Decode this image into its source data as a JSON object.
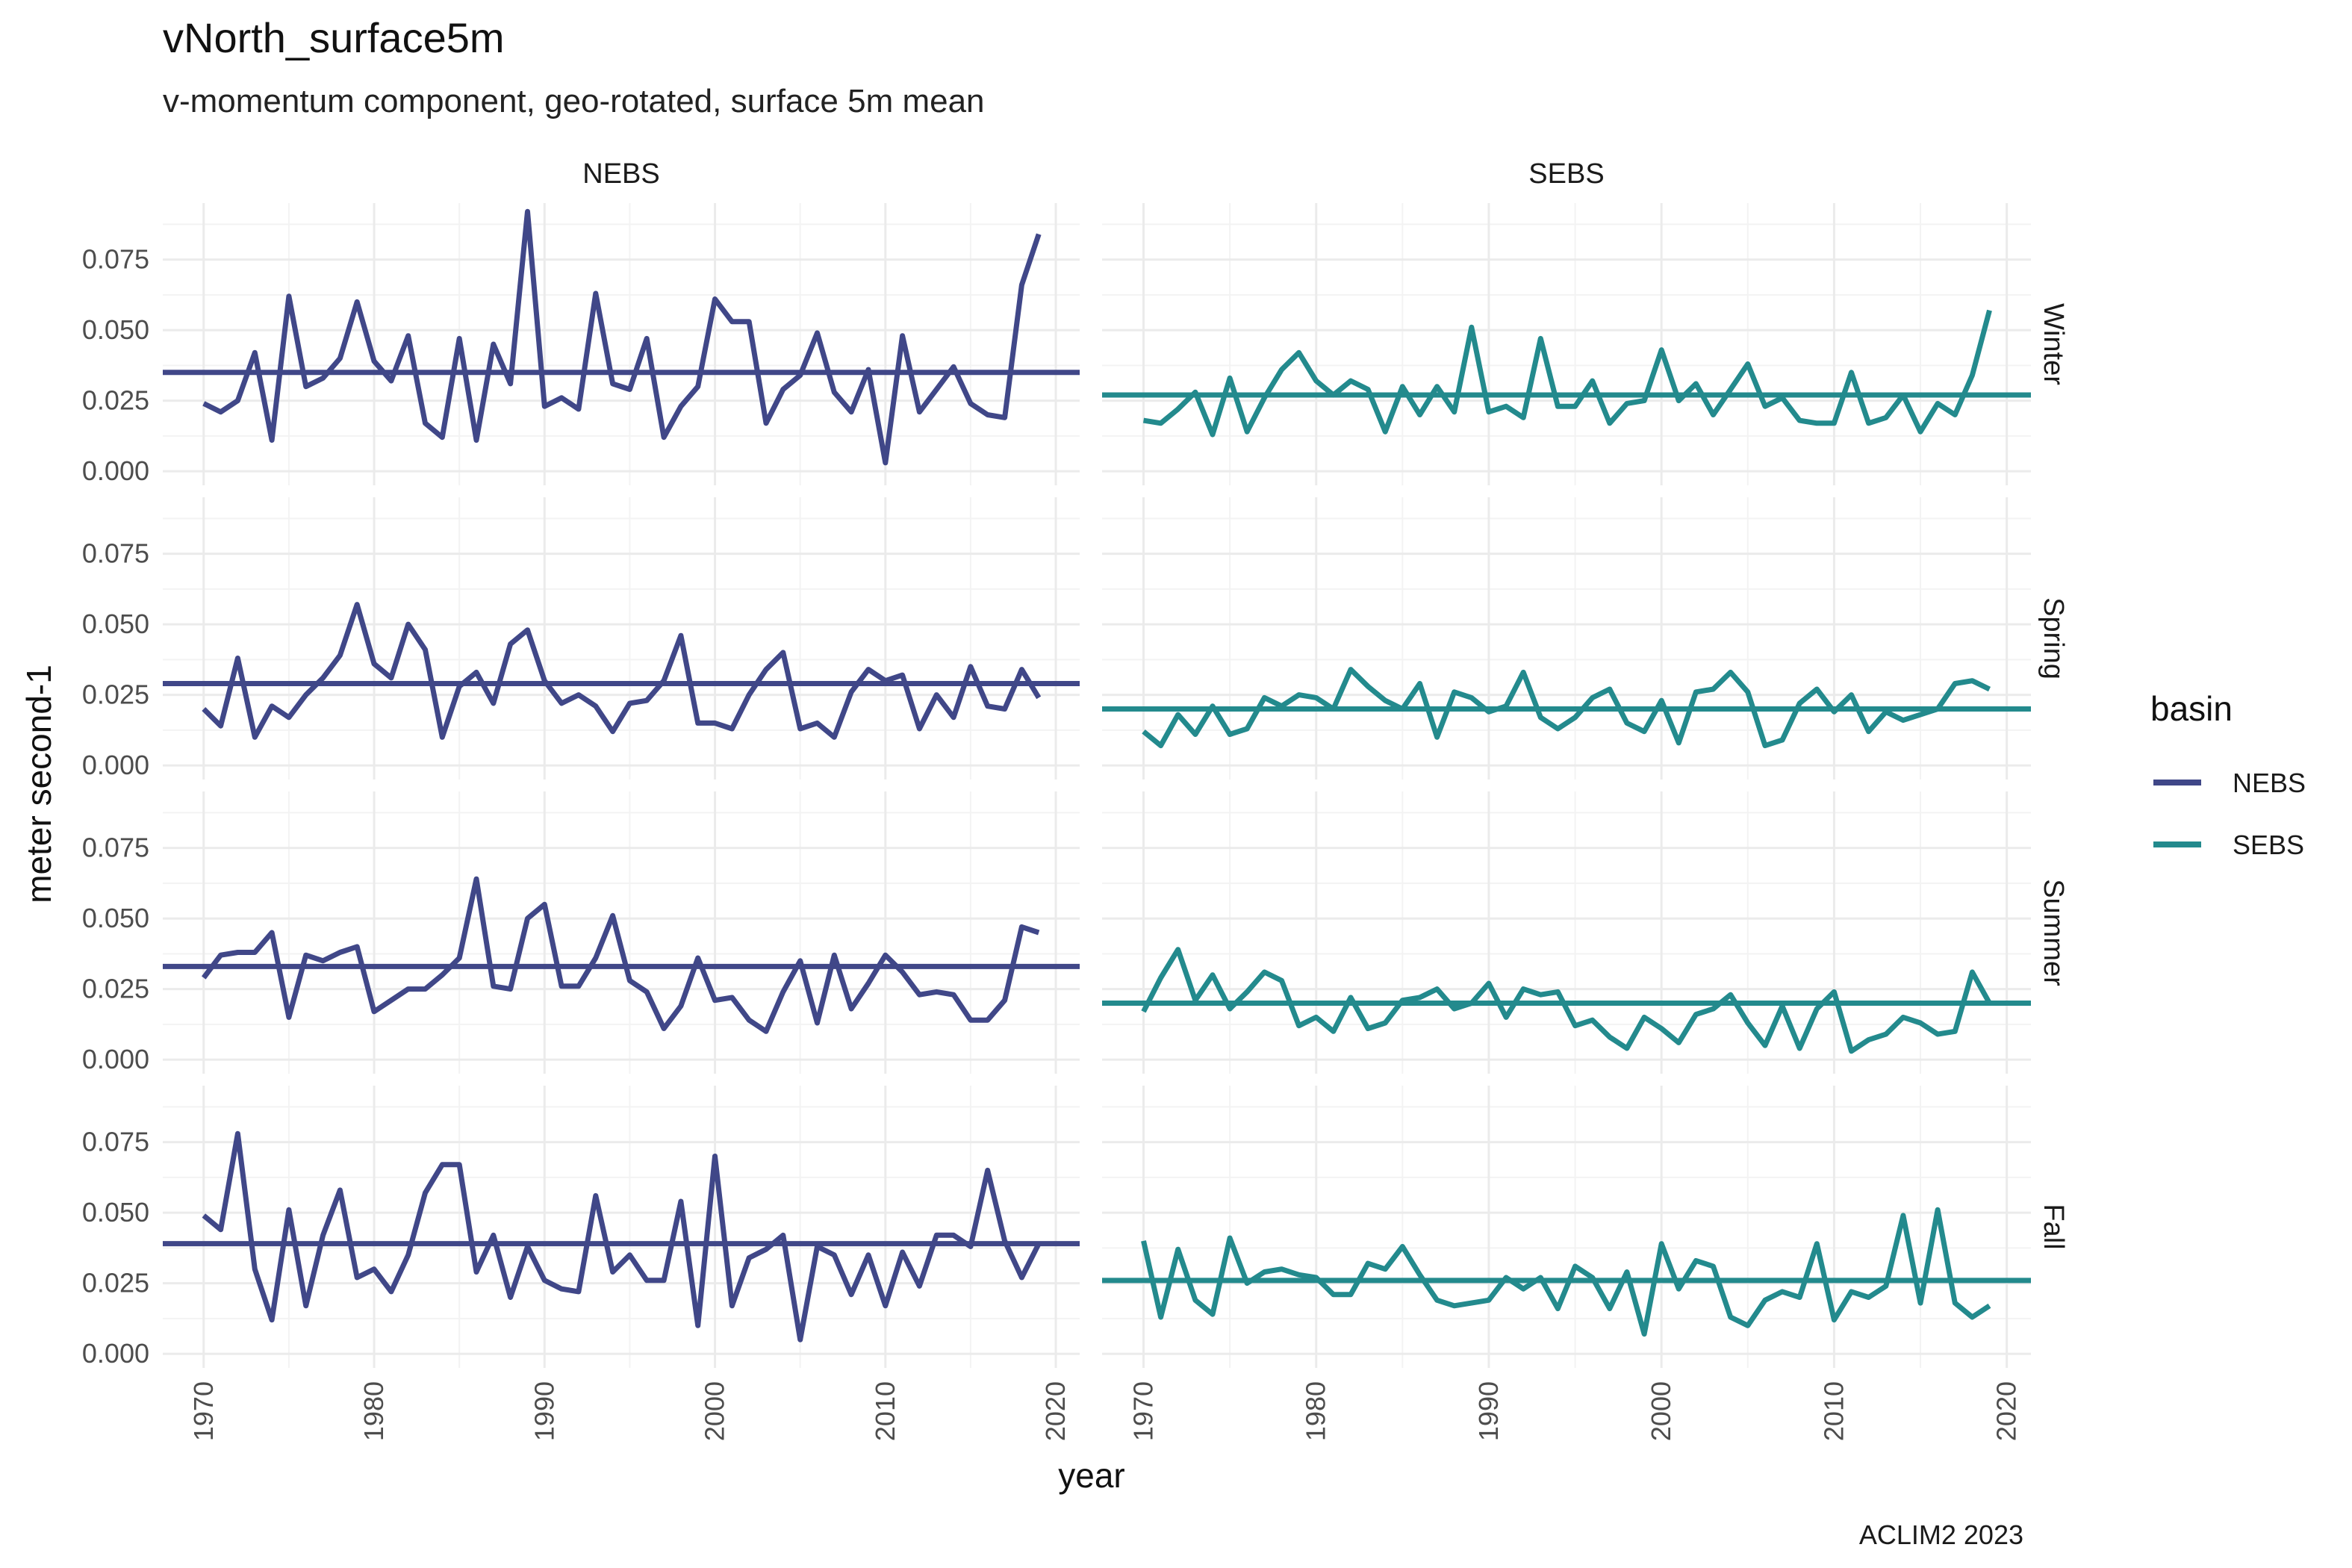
{
  "chart_data": {
    "type": "line",
    "title": "vNorth_surface5m",
    "subtitle": "v-momentum component, geo-rotated, surface 5m mean",
    "xlabel": "year",
    "ylabel": "meter second-1",
    "caption": "ACLIM2 2023",
    "xlim": [
      1967.6,
      2021.4
    ],
    "x_ticks": [
      1970,
      1980,
      1990,
      2000,
      2010,
      2020
    ],
    "y_ticks": [
      0.0,
      0.025,
      0.05,
      0.075
    ],
    "y_tick_labels": [
      "0.000",
      "0.025",
      "0.050",
      "0.075"
    ],
    "ylim": [
      -0.005,
      0.095
    ],
    "grid": true,
    "legend": {
      "title": "basin",
      "position": "right",
      "entries": [
        {
          "name": "NEBS",
          "color": "#404788"
        },
        {
          "name": "SEBS",
          "color": "#238A8D"
        }
      ]
    },
    "columns": [
      "NEBS",
      "SEBS"
    ],
    "rows": [
      "Winter",
      "Spring",
      "Summer",
      "Fall"
    ],
    "colors": {
      "NEBS": "#404788",
      "SEBS": "#238A8D"
    },
    "x": [
      1970,
      1971,
      1972,
      1973,
      1974,
      1975,
      1976,
      1977,
      1978,
      1979,
      1980,
      1981,
      1982,
      1983,
      1984,
      1985,
      1986,
      1987,
      1988,
      1989,
      1990,
      1991,
      1992,
      1993,
      1994,
      1995,
      1996,
      1997,
      1998,
      1999,
      2000,
      2001,
      2002,
      2003,
      2004,
      2005,
      2006,
      2007,
      2008,
      2009,
      2010,
      2011,
      2012,
      2013,
      2014,
      2015,
      2016,
      2017,
      2018,
      2019
    ],
    "panels": [
      {
        "row": "Winter",
        "basin": "NEBS",
        "mean": 0.035,
        "values": [
          0.024,
          0.021,
          0.025,
          0.042,
          0.011,
          0.062,
          0.03,
          0.033,
          0.04,
          0.06,
          0.039,
          0.032,
          0.048,
          0.017,
          0.012,
          0.047,
          0.011,
          0.045,
          0.031,
          0.092,
          0.023,
          0.026,
          0.022,
          0.063,
          0.031,
          0.029,
          0.047,
          0.012,
          0.023,
          0.03,
          0.061,
          0.053,
          0.053,
          0.017,
          0.029,
          0.034,
          0.049,
          0.028,
          0.021,
          0.036,
          0.003,
          0.048,
          0.021,
          0.029,
          0.037,
          0.024,
          0.02,
          0.019,
          0.066,
          0.084
        ]
      },
      {
        "row": "Winter",
        "basin": "SEBS",
        "mean": 0.027,
        "values": [
          0.018,
          0.017,
          0.022,
          0.028,
          0.013,
          0.033,
          0.014,
          0.026,
          0.036,
          0.042,
          0.032,
          0.027,
          0.032,
          0.029,
          0.014,
          0.03,
          0.02,
          0.03,
          0.021,
          0.051,
          0.021,
          0.023,
          0.019,
          0.047,
          0.023,
          0.023,
          0.032,
          0.017,
          0.024,
          0.025,
          0.043,
          0.025,
          0.031,
          0.02,
          0.029,
          0.038,
          0.023,
          0.026,
          0.018,
          0.017,
          0.017,
          0.035,
          0.017,
          0.019,
          0.027,
          0.014,
          0.024,
          0.02,
          0.034,
          0.057
        ]
      },
      {
        "row": "Spring",
        "basin": "NEBS",
        "mean": 0.029,
        "values": [
          0.02,
          0.014,
          0.038,
          0.01,
          0.021,
          0.017,
          0.025,
          0.031,
          0.039,
          0.057,
          0.036,
          0.031,
          0.05,
          0.041,
          0.01,
          0.028,
          0.033,
          0.022,
          0.043,
          0.048,
          0.03,
          0.022,
          0.025,
          0.021,
          0.012,
          0.022,
          0.023,
          0.03,
          0.046,
          0.015,
          0.015,
          0.013,
          0.025,
          0.034,
          0.04,
          0.013,
          0.015,
          0.01,
          0.026,
          0.034,
          0.03,
          0.032,
          0.013,
          0.025,
          0.017,
          0.035,
          0.021,
          0.02,
          0.034,
          0.024
        ]
      },
      {
        "row": "Spring",
        "basin": "SEBS",
        "mean": 0.02,
        "values": [
          0.012,
          0.007,
          0.018,
          0.011,
          0.021,
          0.011,
          0.013,
          0.024,
          0.021,
          0.025,
          0.024,
          0.02,
          0.034,
          0.028,
          0.023,
          0.02,
          0.029,
          0.01,
          0.026,
          0.024,
          0.019,
          0.021,
          0.033,
          0.017,
          0.013,
          0.017,
          0.024,
          0.027,
          0.015,
          0.012,
          0.023,
          0.008,
          0.026,
          0.027,
          0.033,
          0.026,
          0.007,
          0.009,
          0.022,
          0.027,
          0.019,
          0.025,
          0.012,
          0.019,
          0.016,
          0.018,
          0.02,
          0.029,
          0.03,
          0.027
        ]
      },
      {
        "row": "Summer",
        "basin": "NEBS",
        "mean": 0.033,
        "values": [
          0.029,
          0.037,
          0.038,
          0.038,
          0.045,
          0.015,
          0.037,
          0.035,
          0.038,
          0.04,
          0.017,
          0.021,
          0.025,
          0.025,
          0.03,
          0.036,
          0.064,
          0.026,
          0.025,
          0.05,
          0.055,
          0.026,
          0.026,
          0.036,
          0.051,
          0.028,
          0.024,
          0.011,
          0.019,
          0.036,
          0.021,
          0.022,
          0.014,
          0.01,
          0.024,
          0.035,
          0.013,
          0.037,
          0.018,
          0.027,
          0.037,
          0.031,
          0.023,
          0.024,
          0.023,
          0.014,
          0.014,
          0.021,
          0.047,
          0.045
        ]
      },
      {
        "row": "Summer",
        "basin": "SEBS",
        "mean": 0.02,
        "values": [
          0.017,
          0.029,
          0.039,
          0.021,
          0.03,
          0.018,
          0.024,
          0.031,
          0.028,
          0.012,
          0.015,
          0.01,
          0.022,
          0.011,
          0.013,
          0.021,
          0.022,
          0.025,
          0.018,
          0.02,
          0.027,
          0.015,
          0.025,
          0.023,
          0.024,
          0.012,
          0.014,
          0.008,
          0.004,
          0.015,
          0.011,
          0.006,
          0.016,
          0.018,
          0.023,
          0.013,
          0.005,
          0.019,
          0.004,
          0.018,
          0.024,
          0.003,
          0.007,
          0.009,
          0.015,
          0.013,
          0.009,
          0.01,
          0.031,
          0.02
        ]
      },
      {
        "row": "Fall",
        "basin": "NEBS",
        "mean": 0.039,
        "values": [
          0.049,
          0.044,
          0.078,
          0.03,
          0.012,
          0.051,
          0.017,
          0.042,
          0.058,
          0.027,
          0.03,
          0.022,
          0.035,
          0.057,
          0.067,
          0.067,
          0.029,
          0.042,
          0.02,
          0.038,
          0.026,
          0.023,
          0.022,
          0.056,
          0.029,
          0.035,
          0.026,
          0.026,
          0.054,
          0.01,
          0.07,
          0.017,
          0.034,
          0.037,
          0.042,
          0.005,
          0.038,
          0.035,
          0.021,
          0.035,
          0.017,
          0.036,
          0.024,
          0.042,
          0.042,
          0.038,
          0.065,
          0.04,
          0.027,
          0.039
        ]
      },
      {
        "row": "Fall",
        "basin": "SEBS",
        "mean": 0.026,
        "values": [
          0.04,
          0.013,
          0.037,
          0.019,
          0.014,
          0.041,
          0.025,
          0.029,
          0.03,
          0.028,
          0.027,
          0.021,
          0.021,
          0.032,
          0.03,
          0.038,
          0.028,
          0.019,
          0.017,
          0.018,
          0.019,
          0.027,
          0.023,
          0.027,
          0.016,
          0.031,
          0.027,
          0.016,
          0.029,
          0.007,
          0.039,
          0.023,
          0.033,
          0.031,
          0.013,
          0.01,
          0.019,
          0.022,
          0.02,
          0.039,
          0.012,
          0.022,
          0.02,
          0.024,
          0.049,
          0.018,
          0.051,
          0.018,
          0.013,
          0.017
        ]
      }
    ]
  }
}
